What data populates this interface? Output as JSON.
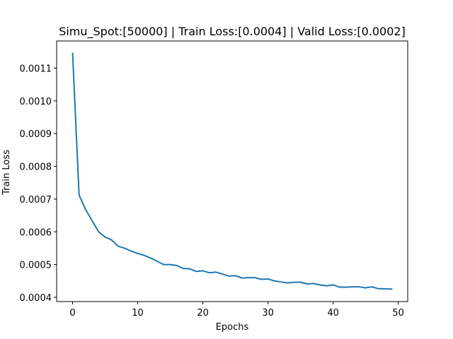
{
  "chart_data": {
    "type": "line",
    "title": "Simu_Spot:[50000] | Train Loss:[0.0004] | Valid Loss:[0.0002]",
    "xlabel": "Epochs",
    "ylabel": "Train Loss",
    "xlim": [
      -2.45,
      51.45
    ],
    "ylim": [
      0.000387,
      0.001183
    ],
    "grid": false,
    "x_ticks": [
      0,
      10,
      20,
      30,
      40,
      50
    ],
    "x_tick_labels": [
      "0",
      "10",
      "20",
      "30",
      "40",
      "50"
    ],
    "y_ticks": [
      0.0004,
      0.0005,
      0.0006,
      0.0007,
      0.0008,
      0.0009,
      0.001,
      0.0011
    ],
    "y_tick_labels": [
      "0.0004",
      "0.0005",
      "0.0006",
      "0.0007",
      "0.0008",
      "0.0009",
      "0.0010",
      "0.0011"
    ],
    "series": [
      {
        "color": "#1f77b4",
        "x": [
          0,
          1,
          2,
          3,
          4,
          5,
          6,
          7,
          8,
          9,
          10,
          11,
          12,
          13,
          14,
          15,
          16,
          17,
          18,
          19,
          20,
          21,
          22,
          23,
          24,
          25,
          26,
          27,
          28,
          29,
          30,
          31,
          32,
          33,
          34,
          35,
          36,
          37,
          38,
          39,
          40,
          41,
          42,
          43,
          44,
          45,
          46,
          47,
          48,
          49
        ],
        "values": [
          0.001145,
          0.000712,
          0.000668,
          0.000634,
          0.0006,
          0.000584,
          0.000575,
          0.000556,
          0.00055,
          0.000541,
          0.000534,
          0.000528,
          0.00052,
          0.00051,
          0.0005,
          0.0005,
          0.000497,
          0.000488,
          0.000487,
          0.000479,
          0.000481,
          0.000475,
          0.000477,
          0.000471,
          0.000465,
          0.000466,
          0.000459,
          0.00046,
          0.00046,
          0.000455,
          0.000456,
          0.00045,
          0.000447,
          0.000444,
          0.000446,
          0.000446,
          0.000441,
          0.000442,
          0.000438,
          0.000435,
          0.000438,
          0.000431,
          0.000431,
          0.000432,
          0.000432,
          0.000429,
          0.000432,
          0.000426,
          0.000426,
          0.000425
        ]
      }
    ]
  }
}
